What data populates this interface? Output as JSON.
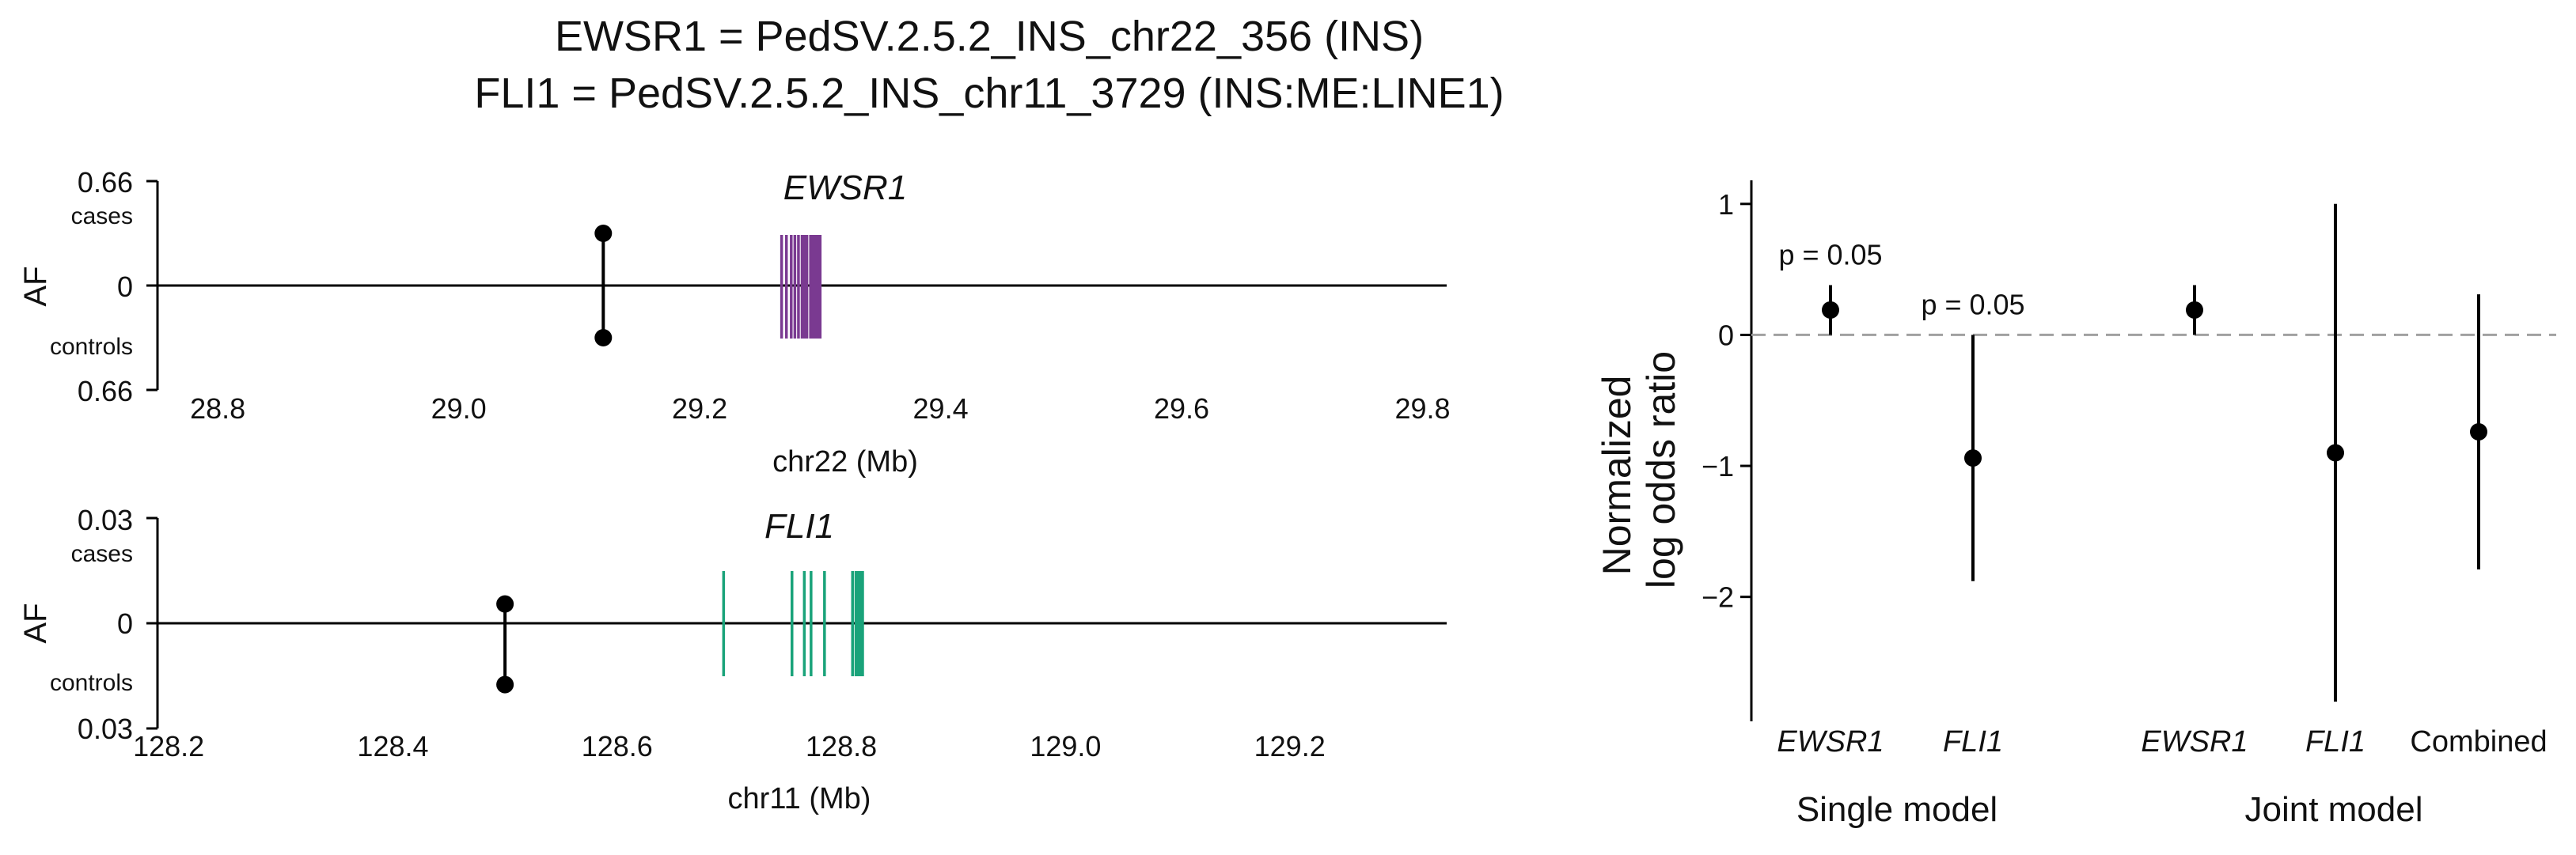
{
  "title": {
    "line1": "EWSR1 = PedSV.2.5.2_INS_chr22_356 (INS)",
    "line2": "FLI1 = PedSV.2.5.2_INS_chr11_3729 (INS:ME:LINE1)"
  },
  "colors": {
    "ewsr1": "#7a3a91",
    "fli1": "#1aa37a",
    "points": "#000000",
    "zero_line": "#a0a0a0"
  },
  "chart_data": [
    {
      "type": "scatter",
      "subtype": "allele-frequency lollipop with gene model",
      "title": "EWSR1",
      "xlabel": "chr22 (Mb)",
      "ylabel": "AF",
      "xlim": [
        28.75,
        29.82
      ],
      "x_ticks": [
        28.8,
        29.0,
        29.2,
        29.4,
        29.6,
        29.8
      ],
      "y_ticks": [
        "0.66",
        "0",
        "0.66"
      ],
      "y_top_label": "cases",
      "y_bottom_label": "controls",
      "af_max": 0.66,
      "variant": {
        "x": 29.12,
        "af_cases": 0.33,
        "af_controls": 0.33
      },
      "gene_color": "ewsr1",
      "exons": [
        29.268,
        29.272,
        29.276,
        29.279,
        29.282,
        29.285,
        29.287,
        29.289,
        29.292,
        29.294,
        29.296,
        29.298,
        29.3
      ]
    },
    {
      "type": "scatter",
      "subtype": "allele-frequency lollipop with gene model",
      "title": "FLI1",
      "xlabel": "chr11 (Mb)",
      "ylabel": "AF",
      "xlim": [
        128.19,
        129.34
      ],
      "x_ticks": [
        128.2,
        128.4,
        128.6,
        128.8,
        129.0,
        129.2
      ],
      "y_ticks": [
        "0.03",
        "0",
        "0.03"
      ],
      "y_top_label": "cases",
      "y_bottom_label": "controls",
      "af_max": 0.03,
      "variant": {
        "x": 128.5,
        "af_cases": 0.0055,
        "af_controls": 0.0175
      },
      "gene_color": "fli1",
      "exons": [
        128.695,
        128.756,
        128.767,
        128.773,
        128.785,
        128.81,
        128.813,
        128.815,
        128.817,
        128.819
      ]
    },
    {
      "type": "scatter",
      "subtype": "point estimates with confidence intervals",
      "ylabel": "Normalized\nlog odds ratio",
      "ylim": [
        -2.95,
        1.18
      ],
      "y_ticks": [
        1,
        0,
        -1,
        -2
      ],
      "reference_line": 0,
      "categories": [
        "EWSR1",
        "FLI1",
        "EWSR1",
        "FLI1",
        "Combined"
      ],
      "category_italic": [
        true,
        true,
        true,
        true,
        false
      ],
      "groups": [
        {
          "label": "Single model",
          "members": [
            0,
            1
          ]
        },
        {
          "label": "Joint model",
          "members": [
            2,
            3,
            4
          ]
        }
      ],
      "points": [
        {
          "label": "EWSR1",
          "estimate": 0.19,
          "ci_low": 0.0,
          "ci_high": 0.38,
          "annotation": "p = 0.05"
        },
        {
          "label": "FLI1",
          "estimate": -0.94,
          "ci_low": -1.88,
          "ci_high": 0.0,
          "annotation": "p = 0.05"
        },
        {
          "label": "EWSR1",
          "estimate": 0.19,
          "ci_low": 0.0,
          "ci_high": 0.38,
          "annotation": ""
        },
        {
          "label": "FLI1",
          "estimate": -0.9,
          "ci_low": -2.8,
          "ci_high": 1.0,
          "annotation": ""
        },
        {
          "label": "Combined",
          "estimate": -0.74,
          "ci_low": -1.79,
          "ci_high": 0.31,
          "annotation": ""
        }
      ]
    }
  ]
}
